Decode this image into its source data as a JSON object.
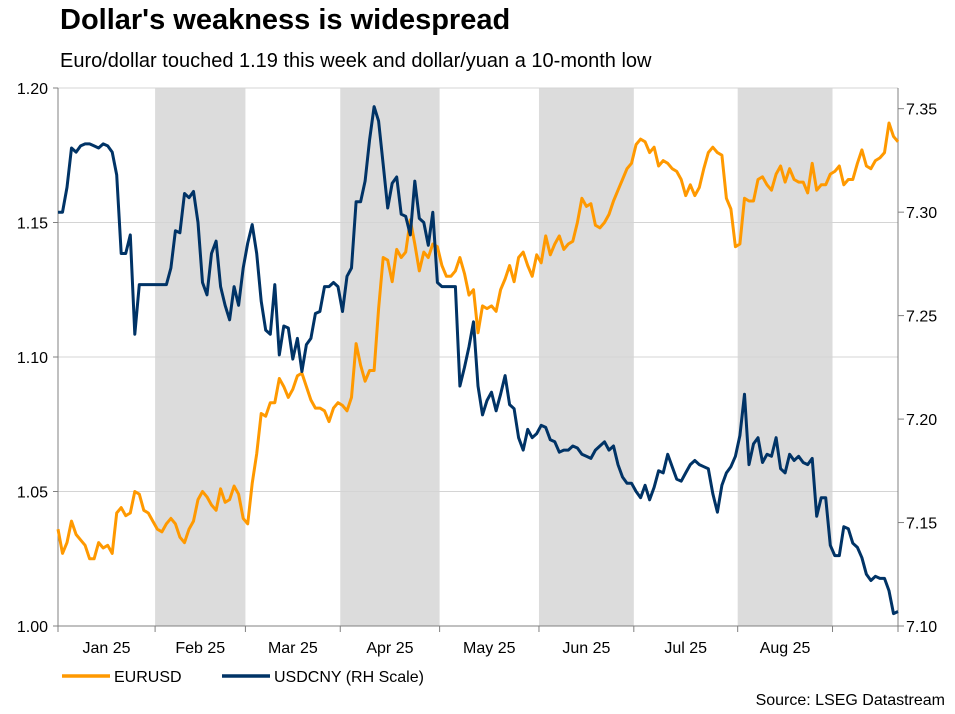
{
  "chart_data": {
    "type": "line",
    "title": "Dollar's weakness is widespread",
    "subtitle": "Euro/dollar touched 1.19 this week and dollar/yuan a 10-month low",
    "source": "Source: LSEG Datastream",
    "x_range": [
      "2025-01-02",
      "2025-09-19"
    ],
    "x_frequency": "business days",
    "month_labels": [
      "Jan 25",
      "Feb 25",
      "Mar 25",
      "Apr 25",
      "May 25",
      "Jun 25",
      "Jul 25",
      "Aug 25"
    ],
    "shaded_months": [
      "Feb 25",
      "Apr 25",
      "Jun 25",
      "Aug 25"
    ],
    "y_left": {
      "range": [
        1.0,
        1.2
      ],
      "ticks": [
        "1.00",
        "1.05",
        "1.10",
        "1.15",
        "1.20"
      ]
    },
    "y_right": {
      "range": [
        7.1,
        7.36
      ],
      "ticks": [
        "7.10",
        "7.15",
        "7.20",
        "7.25",
        "7.30",
        "7.35"
      ]
    },
    "grid": true,
    "legend_placement": "bottom-left",
    "series": [
      {
        "name": "EURUSD",
        "axis": "left",
        "color": "#FF9900",
        "values": [
          1.036,
          1.027,
          1.031,
          1.039,
          1.034,
          1.032,
          1.03,
          1.025,
          1.025,
          1.031,
          1.029,
          1.03,
          1.027,
          1.042,
          1.044,
          1.041,
          1.042,
          1.05,
          1.049,
          1.043,
          1.042,
          1.039,
          1.036,
          1.035,
          1.038,
          1.04,
          1.038,
          1.033,
          1.031,
          1.036,
          1.039,
          1.047,
          1.05,
          1.048,
          1.045,
          1.043,
          1.051,
          1.046,
          1.047,
          1.052,
          1.049,
          1.04,
          1.038,
          1.053,
          1.064,
          1.079,
          1.078,
          1.083,
          1.083,
          1.092,
          1.089,
          1.085,
          1.088,
          1.093,
          1.094,
          1.089,
          1.084,
          1.081,
          1.081,
          1.08,
          1.076,
          1.081,
          1.083,
          1.082,
          1.08,
          1.085,
          1.105,
          1.097,
          1.091,
          1.095,
          1.095,
          1.118,
          1.137,
          1.136,
          1.128,
          1.14,
          1.137,
          1.139,
          1.151,
          1.142,
          1.132,
          1.139,
          1.137,
          1.142,
          1.141,
          1.134,
          1.13,
          1.13,
          1.132,
          1.137,
          1.131,
          1.123,
          1.125,
          1.109,
          1.119,
          1.118,
          1.119,
          1.117,
          1.125,
          1.129,
          1.134,
          1.128,
          1.137,
          1.139,
          1.134,
          1.13,
          1.138,
          1.135,
          1.145,
          1.138,
          1.142,
          1.145,
          1.14,
          1.142,
          1.143,
          1.15,
          1.159,
          1.156,
          1.157,
          1.149,
          1.148,
          1.15,
          1.153,
          1.158,
          1.162,
          1.166,
          1.17,
          1.172,
          1.179,
          1.181,
          1.18,
          1.176,
          1.178,
          1.171,
          1.173,
          1.172,
          1.17,
          1.169,
          1.166,
          1.16,
          1.164,
          1.16,
          1.163,
          1.17,
          1.176,
          1.178,
          1.176,
          1.175,
          1.159,
          1.155,
          1.141,
          1.142,
          1.159,
          1.158,
          1.158,
          1.166,
          1.167,
          1.164,
          1.162,
          1.168,
          1.171,
          1.165,
          1.17,
          1.166,
          1.165,
          1.165,
          1.161,
          1.172,
          1.162,
          1.164,
          1.164,
          1.168,
          1.169,
          1.171,
          1.164,
          1.166,
          1.166,
          1.172,
          1.177,
          1.171,
          1.17,
          1.173,
          1.174,
          1.176,
          1.187,
          1.182,
          1.18
        ]
      },
      {
        "name": "USDCNY (RH Scale)",
        "axis": "right",
        "color": "#003366",
        "values": [
          7.3,
          7.3,
          7.312,
          7.331,
          7.329,
          7.332,
          7.333,
          7.333,
          7.332,
          7.331,
          7.333,
          7.332,
          7.329,
          7.318,
          7.28,
          7.28,
          7.289,
          7.241,
          7.265,
          7.265,
          7.265,
          7.265,
          7.265,
          7.265,
          7.265,
          7.273,
          7.291,
          7.29,
          7.309,
          7.307,
          7.31,
          7.295,
          7.266,
          7.26,
          7.28,
          7.286,
          7.264,
          7.255,
          7.248,
          7.264,
          7.255,
          7.273,
          7.285,
          7.294,
          7.28,
          7.257,
          7.243,
          7.241,
          7.265,
          7.231,
          7.245,
          7.244,
          7.229,
          7.239,
          7.223,
          7.236,
          7.239,
          7.251,
          7.252,
          7.264,
          7.264,
          7.266,
          7.264,
          7.252,
          7.269,
          7.273,
          7.305,
          7.305,
          7.315,
          7.335,
          7.351,
          7.344,
          7.323,
          7.302,
          7.314,
          7.317,
          7.299,
          7.298,
          7.289,
          7.315,
          7.297,
          7.295,
          7.284,
          7.3,
          7.266,
          7.264,
          7.264,
          7.264,
          7.264,
          7.216,
          7.225,
          7.235,
          7.247,
          7.216,
          7.202,
          7.209,
          7.213,
          7.204,
          7.212,
          7.221,
          7.207,
          7.205,
          7.191,
          7.185,
          7.195,
          7.191,
          7.193,
          7.197,
          7.196,
          7.19,
          7.189,
          7.184,
          7.185,
          7.185,
          7.187,
          7.186,
          7.183,
          7.182,
          7.181,
          7.185,
          7.187,
          7.189,
          7.185,
          7.187,
          7.178,
          7.172,
          7.169,
          7.169,
          7.165,
          7.162,
          7.168,
          7.161,
          7.167,
          7.175,
          7.174,
          7.183,
          7.177,
          7.171,
          7.17,
          7.174,
          7.178,
          7.18,
          7.178,
          7.177,
          7.176,
          7.164,
          7.155,
          7.168,
          7.174,
          7.177,
          7.182,
          7.192,
          7.212,
          7.178,
          7.188,
          7.191,
          7.179,
          7.183,
          7.182,
          7.191,
          7.176,
          7.174,
          7.183,
          7.18,
          7.182,
          7.179,
          7.178,
          7.181,
          7.153,
          7.162,
          7.162,
          7.139,
          7.134,
          7.134,
          7.148,
          7.147,
          7.14,
          7.138,
          7.133,
          7.125,
          7.122,
          7.124,
          7.123,
          7.123,
          7.117,
          7.106,
          7.107
        ]
      }
    ]
  }
}
